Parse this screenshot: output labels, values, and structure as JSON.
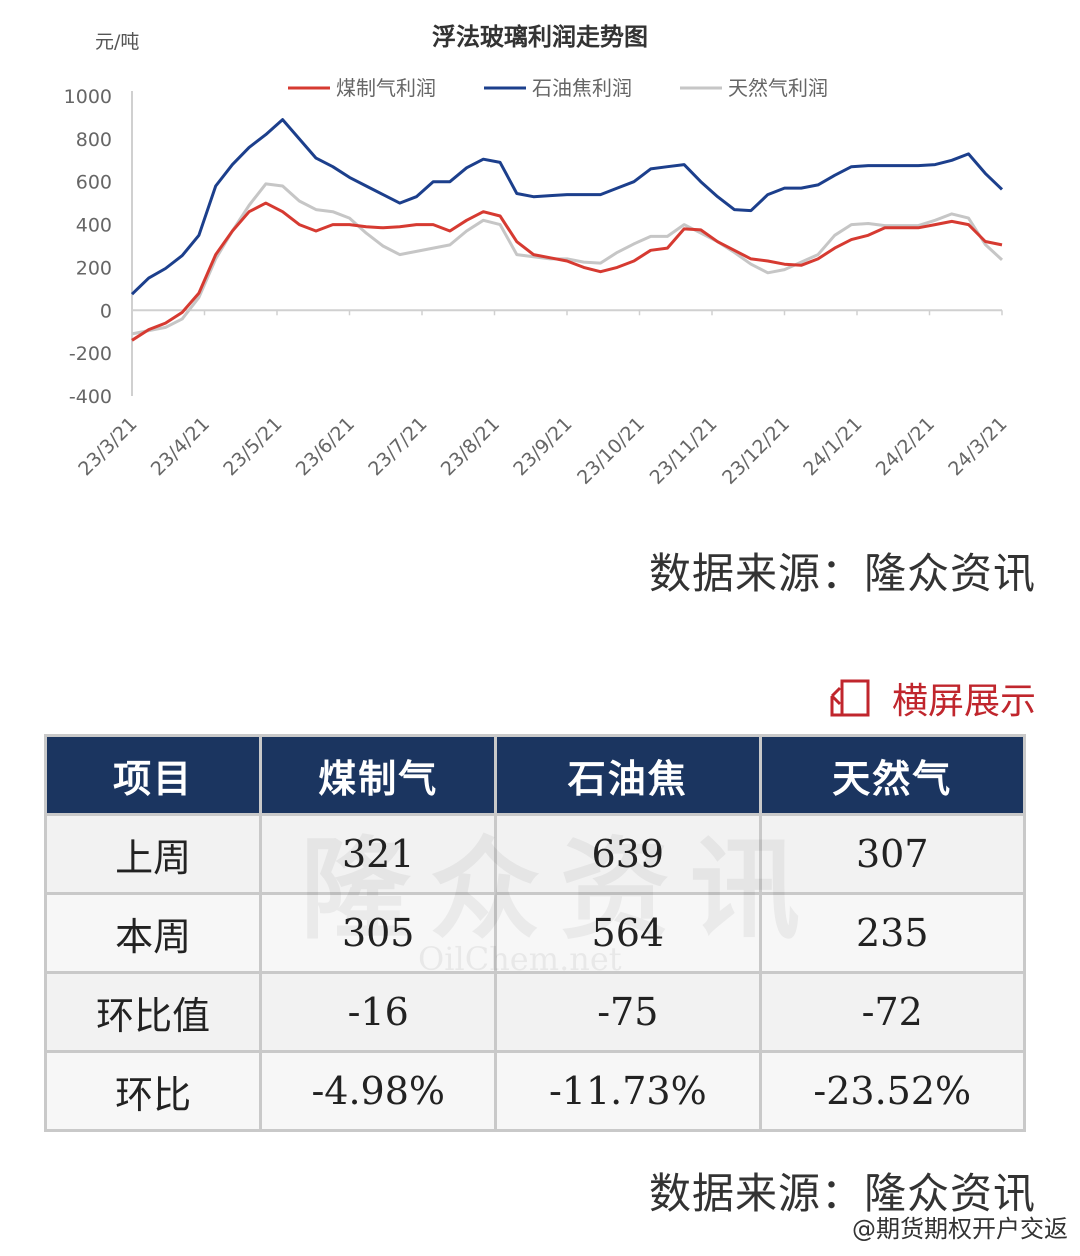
{
  "chart_data": {
    "type": "line",
    "title": "浮法玻璃利润走势图",
    "ylabel": "元/吨",
    "ylim": [
      -400,
      1000
    ],
    "yticks": [
      "1000",
      "800",
      "600",
      "400",
      "200",
      "0",
      "-200",
      "-400"
    ],
    "xtick_labels": [
      "23/3/21",
      "23/4/21",
      "23/5/21",
      "23/6/21",
      "23/7/21",
      "23/8/21",
      "23/9/21",
      "23/10/21",
      "23/11/21",
      "23/12/21",
      "24/1/21",
      "24/2/21",
      "24/3/21"
    ],
    "x": [
      "23/3/21",
      "23/3/28",
      "23/4/4",
      "23/4/11",
      "23/4/18",
      "23/4/25",
      "23/5/2",
      "23/5/9",
      "23/5/16",
      "23/5/23",
      "23/5/30",
      "23/6/6",
      "23/6/13",
      "23/6/20",
      "23/6/27",
      "23/7/4",
      "23/7/11",
      "23/7/18",
      "23/7/25",
      "23/8/1",
      "23/8/8",
      "23/8/15",
      "23/8/22",
      "23/8/29",
      "23/9/5",
      "23/9/12",
      "23/9/19",
      "23/9/26",
      "23/10/3",
      "23/10/10",
      "23/10/17",
      "23/10/24",
      "23/10/31",
      "23/11/7",
      "23/11/14",
      "23/11/21",
      "23/11/28",
      "23/12/5",
      "23/12/12",
      "23/12/19",
      "23/12/26",
      "24/1/2",
      "24/1/9",
      "24/1/16",
      "24/1/23",
      "24/1/30",
      "24/2/6",
      "24/2/13",
      "24/2/20",
      "24/2/27",
      "24/3/5",
      "24/3/12",
      "24/3/19"
    ],
    "legend_position": "top-center",
    "series": [
      {
        "name": "煤制气利润",
        "color": "#d63a31",
        "values": [
          -140,
          -90,
          -60,
          -10,
          80,
          260,
          370,
          460,
          500,
          460,
          400,
          370,
          400,
          400,
          390,
          385,
          390,
          400,
          400,
          370,
          420,
          460,
          440,
          320,
          260,
          245,
          230,
          200,
          180,
          200,
          230,
          280,
          290,
          380,
          375,
          320,
          280,
          240,
          230,
          215,
          210,
          240,
          290,
          330,
          350,
          385,
          385,
          385,
          400,
          415,
          400,
          321,
          305
        ]
      },
      {
        "name": "石油焦利润",
        "color": "#1c3f8c",
        "values": [
          75,
          150,
          195,
          255,
          350,
          580,
          680,
          760,
          820,
          890,
          800,
          710,
          670,
          620,
          580,
          540,
          500,
          530,
          600,
          600,
          665,
          705,
          690,
          545,
          530,
          535,
          540,
          540,
          540,
          570,
          600,
          660,
          670,
          680,
          600,
          530,
          470,
          465,
          540,
          570,
          570,
          585,
          630,
          670,
          675,
          675,
          675,
          675,
          680,
          700,
          730,
          639,
          564
        ]
      },
      {
        "name": "天然气利润",
        "color": "#c6c6c6",
        "values": [
          -110,
          -95,
          -80,
          -40,
          60,
          240,
          370,
          490,
          590,
          580,
          510,
          470,
          460,
          430,
          360,
          300,
          260,
          275,
          290,
          305,
          370,
          420,
          400,
          260,
          250,
          240,
          240,
          225,
          220,
          270,
          310,
          345,
          345,
          400,
          360,
          320,
          270,
          215,
          175,
          190,
          225,
          260,
          350,
          400,
          405,
          395,
          395,
          395,
          420,
          450,
          430,
          307,
          235
        ]
      }
    ]
  },
  "source_label": "数据来源：隆众资讯",
  "landscape_label": "横屏展示",
  "table": {
    "headers": [
      "项目",
      "煤制气",
      "石油焦",
      "天然气"
    ],
    "rows": [
      [
        "上周",
        "321",
        "639",
        "307"
      ],
      [
        "本周",
        "305",
        "564",
        "235"
      ],
      [
        "环比值",
        "-16",
        "-75",
        "-72"
      ],
      [
        "环比",
        "-4.98%",
        "-11.73%",
        "-23.52%"
      ]
    ]
  },
  "watermark": "隆众资讯",
  "watermark_sub": "OilChem.net",
  "credit": "@期货期权开户交返"
}
